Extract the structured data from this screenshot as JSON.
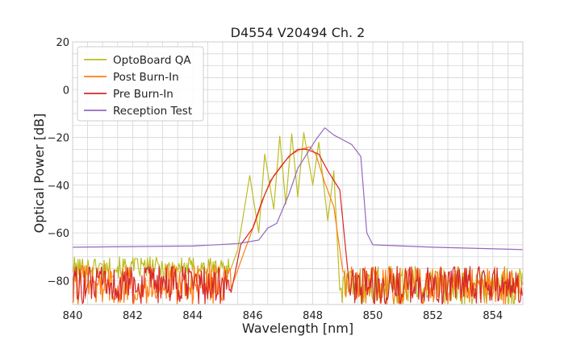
{
  "chart_data": {
    "type": "line",
    "title": "D4554 V20494 Ch. 2",
    "xlabel": "Wavelength [nm]",
    "ylabel": "Optical Power [dB]",
    "xlim": [
      840,
      855
    ],
    "ylim": [
      -90,
      20
    ],
    "xticks": [
      "840",
      "842",
      "844",
      "846",
      "848",
      "850",
      "852",
      "854"
    ],
    "xtick_values": [
      840,
      842,
      844,
      846,
      848,
      850,
      852,
      854
    ],
    "yticks": [
      "20",
      "0",
      "−20",
      "−40",
      "−60",
      "−80"
    ],
    "ytick_values": [
      20,
      0,
      -20,
      -40,
      -60,
      -80
    ],
    "grid": true,
    "legend_position": "top-left",
    "series": [
      {
        "name": "OptoBoard QA",
        "color": "#bcbd22",
        "noise_range": [
          840,
          848.9
        ],
        "noise_level": [
          -79,
          -70
        ],
        "peaks": [
          [
            844.6,
            -64
          ],
          [
            845.2,
            -55
          ],
          [
            845.9,
            -36
          ],
          [
            846.4,
            -27
          ],
          [
            846.9,
            -19.5
          ],
          [
            847.3,
            -18.5
          ],
          [
            847.7,
            -18
          ],
          [
            848.2,
            -22
          ],
          [
            848.7,
            -34
          ]
        ],
        "points": [
          [
            840,
            -75
          ],
          [
            844.3,
            -71
          ],
          [
            844.6,
            -64
          ],
          [
            844.9,
            -69
          ],
          [
            845.2,
            -55
          ],
          [
            845.5,
            -67
          ],
          [
            845.9,
            -36
          ],
          [
            846.2,
            -60
          ],
          [
            846.4,
            -27
          ],
          [
            846.7,
            -50
          ],
          [
            846.9,
            -19.5
          ],
          [
            847.1,
            -48
          ],
          [
            847.3,
            -18.5
          ],
          [
            847.5,
            -45
          ],
          [
            847.7,
            -18
          ],
          [
            848.0,
            -40
          ],
          [
            848.2,
            -22
          ],
          [
            848.5,
            -55
          ],
          [
            848.7,
            -34
          ],
          [
            848.9,
            -84
          ]
        ]
      },
      {
        "name": "Post Burn-In",
        "color": "#ff7f0e",
        "noise_range": [
          840,
          849.0
        ],
        "noise_level": [
          -90,
          -73
        ],
        "points": [
          [
            845.8,
            -65
          ],
          [
            846.1,
            -55
          ],
          [
            846.4,
            -44
          ],
          [
            846.7,
            -36
          ],
          [
            847.0,
            -31
          ],
          [
            847.3,
            -27
          ],
          [
            847.6,
            -25
          ],
          [
            847.9,
            -24
          ],
          [
            848.1,
            -27
          ],
          [
            848.4,
            -39
          ],
          [
            848.7,
            -49
          ],
          [
            849.0,
            -76
          ]
        ]
      },
      {
        "name": "Pre Burn-In",
        "color": "#d62728",
        "noise_range": [
          840,
          849.2
        ],
        "noise_level": [
          -90,
          -74
        ],
        "points": [
          [
            845.0,
            -72
          ],
          [
            845.6,
            -65
          ],
          [
            846.0,
            -58
          ],
          [
            846.3,
            -47
          ],
          [
            846.6,
            -38
          ],
          [
            846.9,
            -33
          ],
          [
            847.2,
            -28
          ],
          [
            847.5,
            -25
          ],
          [
            847.8,
            -25
          ],
          [
            848.2,
            -27
          ],
          [
            848.5,
            -34
          ],
          [
            848.9,
            -42
          ],
          [
            849.2,
            -80
          ]
        ]
      },
      {
        "name": "Reception Test",
        "color": "#9467bd",
        "points": [
          [
            840,
            -66
          ],
          [
            844,
            -65.5
          ],
          [
            845.5,
            -64.5
          ],
          [
            846.2,
            -63
          ],
          [
            846.5,
            -58
          ],
          [
            846.8,
            -56
          ],
          [
            847.2,
            -44
          ],
          [
            847.5,
            -33
          ],
          [
            847.8,
            -27
          ],
          [
            848.1,
            -21
          ],
          [
            848.4,
            -16
          ],
          [
            848.7,
            -19
          ],
          [
            849.0,
            -21
          ],
          [
            849.3,
            -23
          ],
          [
            849.6,
            -28
          ],
          [
            849.8,
            -60
          ],
          [
            850,
            -65
          ],
          [
            852,
            -66
          ],
          [
            855,
            -67
          ]
        ]
      }
    ]
  }
}
